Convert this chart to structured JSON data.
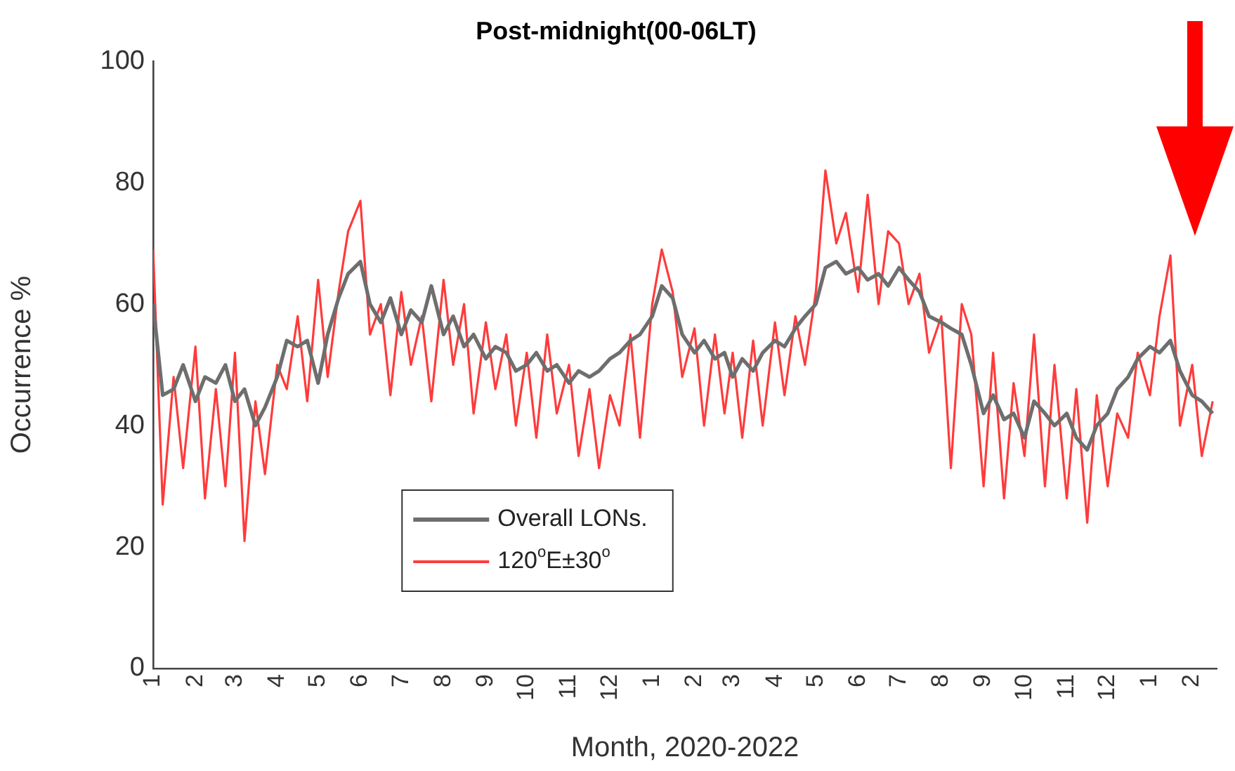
{
  "chart_data": {
    "type": "line",
    "title": "Post-midnight(00-06LT)",
    "xlabel": "Month, 2020-2022",
    "ylabel": "Occurrence %",
    "x": [
      "2020-01-01",
      "2020-01-08",
      "2020-01-16",
      "2020-01-23",
      "2020-02-01",
      "2020-02-08",
      "2020-02-16",
      "2020-02-23",
      "2020-03-01",
      "2020-03-08",
      "2020-03-16",
      "2020-03-23",
      "2020-04-01",
      "2020-04-08",
      "2020-04-16",
      "2020-04-23",
      "2020-05-01",
      "2020-05-08",
      "2020-05-16",
      "2020-05-23",
      "2020-06-01",
      "2020-06-08",
      "2020-06-16",
      "2020-06-23",
      "2020-07-01",
      "2020-07-08",
      "2020-07-16",
      "2020-07-23",
      "2020-08-01",
      "2020-08-08",
      "2020-08-16",
      "2020-08-23",
      "2020-09-01",
      "2020-09-08",
      "2020-09-16",
      "2020-09-23",
      "2020-10-01",
      "2020-10-08",
      "2020-10-16",
      "2020-10-23",
      "2020-11-01",
      "2020-11-08",
      "2020-11-16",
      "2020-11-23",
      "2020-12-01",
      "2020-12-08",
      "2020-12-16",
      "2020-12-23",
      "2021-01-01",
      "2021-01-08",
      "2021-01-16",
      "2021-01-23",
      "2021-02-01",
      "2021-02-08",
      "2021-02-16",
      "2021-02-23",
      "2021-03-01",
      "2021-03-08",
      "2021-03-16",
      "2021-03-23",
      "2021-04-01",
      "2021-04-08",
      "2021-04-16",
      "2021-04-23",
      "2021-05-01",
      "2021-05-08",
      "2021-05-16",
      "2021-05-23",
      "2021-06-01",
      "2021-06-08",
      "2021-06-16",
      "2021-06-23",
      "2021-07-01",
      "2021-07-08",
      "2021-07-16",
      "2021-07-23",
      "2021-08-01",
      "2021-08-08",
      "2021-08-16",
      "2021-08-23",
      "2021-09-01",
      "2021-09-08",
      "2021-09-16",
      "2021-09-23",
      "2021-10-01",
      "2021-10-08",
      "2021-10-16",
      "2021-10-23",
      "2021-11-01",
      "2021-11-08",
      "2021-11-16",
      "2021-11-23",
      "2021-12-01",
      "2021-12-08",
      "2021-12-16",
      "2021-12-23",
      "2022-01-01",
      "2022-01-08",
      "2022-01-16",
      "2022-01-23",
      "2022-02-01",
      "2022-02-08",
      "2022-02-16"
    ],
    "series": [
      {
        "name": "Overall LONs.",
        "color": "#6e6e6e",
        "values": [
          60,
          45,
          46,
          50,
          44,
          48,
          47,
          50,
          44,
          46,
          40,
          43,
          48,
          54,
          53,
          54,
          47,
          55,
          61,
          65,
          67,
          60,
          57,
          61,
          55,
          59,
          57,
          63,
          55,
          58,
          53,
          55,
          51,
          53,
          52,
          49,
          50,
          52,
          49,
          50,
          47,
          49,
          48,
          49,
          51,
          52,
          54,
          55,
          58,
          63,
          61,
          55,
          52,
          54,
          51,
          52,
          48,
          51,
          49,
          52,
          54,
          53,
          56,
          58,
          60,
          66,
          67,
          65,
          66,
          64,
          65,
          63,
          66,
          64,
          62,
          58,
          57,
          56,
          55,
          50,
          42,
          45,
          41,
          42,
          38,
          44,
          42,
          40,
          42,
          38,
          36,
          40,
          42,
          46,
          48,
          51,
          53,
          52,
          54,
          49,
          45,
          44,
          42
        ]
      },
      {
        "name": "120$^{o}$E±30$^{o}$",
        "color": "#ff3b3b",
        "values": [
          69,
          27,
          48,
          33,
          53,
          28,
          46,
          30,
          52,
          21,
          44,
          32,
          50,
          46,
          58,
          44,
          64,
          48,
          62,
          72,
          77,
          55,
          60,
          45,
          62,
          50,
          58,
          44,
          64,
          50,
          60,
          42,
          57,
          46,
          55,
          40,
          52,
          38,
          55,
          42,
          50,
          35,
          46,
          33,
          45,
          40,
          55,
          38,
          60,
          69,
          62,
          48,
          56,
          40,
          55,
          42,
          52,
          38,
          54,
          40,
          57,
          45,
          58,
          50,
          62,
          82,
          70,
          75,
          62,
          78,
          60,
          72,
          70,
          60,
          65,
          52,
          58,
          33,
          60,
          55,
          30,
          52,
          28,
          47,
          35,
          55,
          30,
          50,
          28,
          46,
          24,
          45,
          30,
          42,
          38,
          52,
          45,
          58,
          68,
          40,
          50,
          35,
          44
        ]
      }
    ],
    "xlim": [
      "2020-01-01",
      "2022-02-19"
    ],
    "xticks": [
      {
        "value": "2020-01",
        "label": "1"
      },
      {
        "value": "2020-02",
        "label": "2"
      },
      {
        "value": "2020-03",
        "label": "3"
      },
      {
        "value": "2020-04",
        "label": "4"
      },
      {
        "value": "2020-05",
        "label": "5"
      },
      {
        "value": "2020-06",
        "label": "6"
      },
      {
        "value": "2020-07",
        "label": "7"
      },
      {
        "value": "2020-08",
        "label": "8"
      },
      {
        "value": "2020-09",
        "label": "9"
      },
      {
        "value": "2020-10",
        "label": "10"
      },
      {
        "value": "2020-11",
        "label": "11"
      },
      {
        "value": "2020-12",
        "label": "12"
      },
      {
        "value": "2021-01",
        "label": "1"
      },
      {
        "value": "2021-02",
        "label": "2"
      },
      {
        "value": "2021-03",
        "label": "3"
      },
      {
        "value": "2021-04",
        "label": "4"
      },
      {
        "value": "2021-05",
        "label": "5"
      },
      {
        "value": "2021-06",
        "label": "6"
      },
      {
        "value": "2021-07",
        "label": "7"
      },
      {
        "value": "2021-08",
        "label": "8"
      },
      {
        "value": "2021-09",
        "label": "9"
      },
      {
        "value": "2021-10",
        "label": "10"
      },
      {
        "value": "2021-11",
        "label": "11"
      },
      {
        "value": "2021-12",
        "label": "12"
      },
      {
        "value": "2022-01",
        "label": "1"
      },
      {
        "value": "2022-02",
        "label": "2"
      }
    ],
    "ylim": [
      0,
      100
    ],
    "yticks": [
      0,
      20,
      40,
      60,
      80,
      100
    ],
    "grid": false,
    "legend": "bottom",
    "marker": "none",
    "line_style": "solid"
  }
}
